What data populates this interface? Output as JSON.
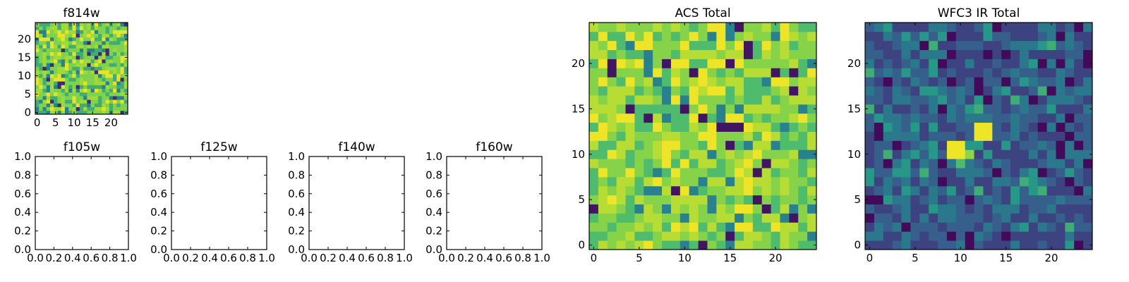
{
  "figure": {
    "background": "#ffffff",
    "colormap": [
      "#440154",
      "#3b528b",
      "#21918c",
      "#5ec962",
      "#a0da39",
      "#fde725"
    ]
  },
  "chart_data": [
    {
      "id": "f814w",
      "type": "heatmap",
      "title": "f814w",
      "xlabel": "",
      "ylabel": "",
      "grid": false,
      "n": 25,
      "xlim": [
        -0.5,
        24.5
      ],
      "ylim": [
        -0.5,
        24.5
      ],
      "xticks": [
        0,
        5,
        10,
        15,
        20
      ],
      "yticks": [
        0,
        5,
        10,
        15,
        20
      ],
      "seed": 11,
      "levels": [
        0.1,
        0.35,
        0.5,
        0.7,
        0.8,
        0.95
      ],
      "level_weights": [
        0.04,
        0.1,
        0.22,
        0.3,
        0.22,
        0.12
      ]
    },
    {
      "id": "f105w",
      "type": "heatmap",
      "title": "f105w",
      "xlabel": "",
      "ylabel": "",
      "grid": false,
      "empty": true,
      "xlim": [
        0.0,
        1.0
      ],
      "ylim": [
        0.0,
        1.0
      ],
      "xticks": [
        "0.0",
        "0.2",
        "0.4",
        "0.6",
        "0.8",
        "1.0"
      ],
      "yticks": [
        "0.0",
        "0.2",
        "0.4",
        "0.6",
        "0.8",
        "1.0"
      ]
    },
    {
      "id": "f125w",
      "type": "heatmap",
      "title": "f125w",
      "xlabel": "",
      "ylabel": "",
      "grid": false,
      "empty": true,
      "xlim": [
        0.0,
        1.0
      ],
      "ylim": [
        0.0,
        1.0
      ],
      "xticks": [
        "0.0",
        "0.2",
        "0.4",
        "0.6",
        "0.8",
        "1.0"
      ],
      "yticks": [
        "0.0",
        "0.2",
        "0.4",
        "0.6",
        "0.8",
        "1.0"
      ]
    },
    {
      "id": "f140w",
      "type": "heatmap",
      "title": "f140w",
      "xlabel": "",
      "ylabel": "",
      "grid": false,
      "empty": true,
      "xlim": [
        0.0,
        1.0
      ],
      "ylim": [
        0.0,
        1.0
      ],
      "xticks": [
        "0.0",
        "0.2",
        "0.4",
        "0.6",
        "0.8",
        "1.0"
      ],
      "yticks": [
        "0.0",
        "0.2",
        "0.4",
        "0.6",
        "0.8",
        "1.0"
      ]
    },
    {
      "id": "f160w",
      "type": "heatmap",
      "title": "f160w",
      "xlabel": "",
      "ylabel": "",
      "grid": false,
      "empty": true,
      "xlim": [
        0.0,
        1.0
      ],
      "ylim": [
        0.0,
        1.0
      ],
      "xticks": [
        "0.0",
        "0.2",
        "0.4",
        "0.6",
        "0.8",
        "1.0"
      ],
      "yticks": [
        "0.0",
        "0.2",
        "0.4",
        "0.6",
        "0.8",
        "1.0"
      ]
    },
    {
      "id": "acs-total",
      "type": "heatmap",
      "title": "ACS Total",
      "xlabel": "",
      "ylabel": "",
      "grid": false,
      "n": 25,
      "xlim": [
        -0.5,
        24.5
      ],
      "ylim": [
        -0.5,
        24.5
      ],
      "xticks": [
        0,
        5,
        10,
        15,
        20
      ],
      "yticks": [
        0,
        5,
        10,
        15,
        20
      ],
      "seed": 27,
      "levels": [
        0.05,
        0.35,
        0.55,
        0.72,
        0.85,
        0.97
      ],
      "level_weights": [
        0.03,
        0.07,
        0.2,
        0.3,
        0.26,
        0.14
      ],
      "highlights": [
        {
          "x": 12,
          "y": 0,
          "v": 0.05
        },
        {
          "x": 0,
          "y": 4,
          "v": 0.05
        },
        {
          "x": 18,
          "y": 8,
          "v": 0.05
        },
        {
          "x": 15,
          "y": 11,
          "v": 0.05
        },
        {
          "x": 16,
          "y": 13,
          "v": 0.05
        },
        {
          "x": 8,
          "y": 20,
          "v": 0.05
        },
        {
          "x": 15,
          "y": 20,
          "v": 0.05
        },
        {
          "x": 22,
          "y": 19,
          "v": 0.05
        }
      ]
    },
    {
      "id": "wfc3-ir-total",
      "type": "heatmap",
      "title": "WFC3 IR Total",
      "xlabel": "",
      "ylabel": "",
      "grid": false,
      "n": 25,
      "xlim": [
        -0.5,
        24.5
      ],
      "ylim": [
        -0.5,
        24.5
      ],
      "xticks": [
        0,
        5,
        10,
        15,
        20
      ],
      "yticks": [
        0,
        5,
        10,
        15,
        20
      ],
      "seed": 53,
      "levels": [
        0.02,
        0.16,
        0.24,
        0.32,
        0.42,
        0.5
      ],
      "level_weights": [
        0.08,
        0.3,
        0.3,
        0.2,
        0.09,
        0.03
      ],
      "highlights": [
        {
          "x": 9,
          "y": 11,
          "v": 0.97
        },
        {
          "x": 10,
          "y": 11,
          "v": 0.97
        },
        {
          "x": 9,
          "y": 10,
          "v": 0.97
        },
        {
          "x": 10,
          "y": 10,
          "v": 0.97
        },
        {
          "x": 11,
          "y": 10,
          "v": 0.75
        },
        {
          "x": 10,
          "y": 9,
          "v": 0.55
        },
        {
          "x": 12,
          "y": 12,
          "v": 0.97
        },
        {
          "x": 12,
          "y": 13,
          "v": 0.97
        },
        {
          "x": 13,
          "y": 12,
          "v": 0.97
        },
        {
          "x": 13,
          "y": 13,
          "v": 0.97
        },
        {
          "x": 8,
          "y": 15,
          "v": 0.02
        },
        {
          "x": 12,
          "y": 17,
          "v": 0.02
        },
        {
          "x": 0,
          "y": 5,
          "v": 0.02
        },
        {
          "x": 1,
          "y": 5,
          "v": 0.02
        },
        {
          "x": 0,
          "y": 3,
          "v": 0.02
        },
        {
          "x": 15,
          "y": 21,
          "v": 0.02
        },
        {
          "x": 8,
          "y": 20,
          "v": 0.02
        }
      ]
    }
  ]
}
